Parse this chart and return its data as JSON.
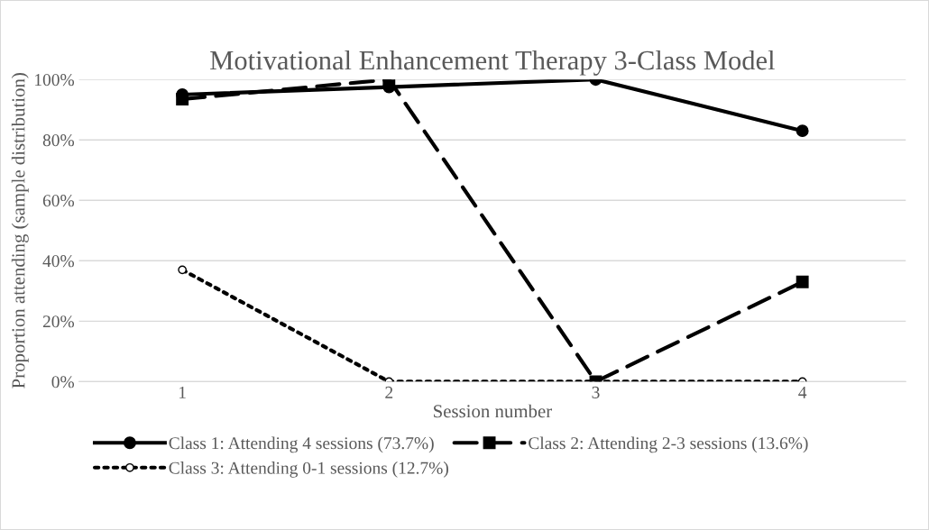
{
  "chart_data": {
    "type": "line",
    "title": "Motivational Enhancement Therapy 3-Class Model",
    "xlabel": "Session number",
    "ylabel": "Proportion attending (sample distribution)",
    "categories": [
      "1",
      "2",
      "3",
      "4"
    ],
    "series": [
      {
        "name": "Class 1: Attending 4 sessions (73.7%)",
        "color": "#000000",
        "values": [
          95,
          97.5,
          100,
          83
        ],
        "marker": "circle",
        "line_style": "solid"
      },
      {
        "name": "Class 2: Attending 2-3 sessions (13.6%)",
        "color": "#000000",
        "values": [
          93.5,
          100,
          0,
          33
        ],
        "marker": "square",
        "line_style": "dashed"
      },
      {
        "name": "Class 3: Attending 0-1 sessions (12.7%)",
        "color": "#000000",
        "values": [
          37,
          0,
          0,
          0
        ],
        "marker": "circle",
        "line_style": "dotted"
      }
    ],
    "ylim": [
      0,
      100
    ],
    "yticks": [
      {
        "value": 0,
        "label": "0%"
      },
      {
        "value": 20,
        "label": "20%"
      },
      {
        "value": 40,
        "label": "40%"
      },
      {
        "value": 60,
        "label": "60%"
      },
      {
        "value": 80,
        "label": "80%"
      },
      {
        "value": 100,
        "label": "100%"
      }
    ],
    "grid": "y",
    "legend": "bottom"
  }
}
